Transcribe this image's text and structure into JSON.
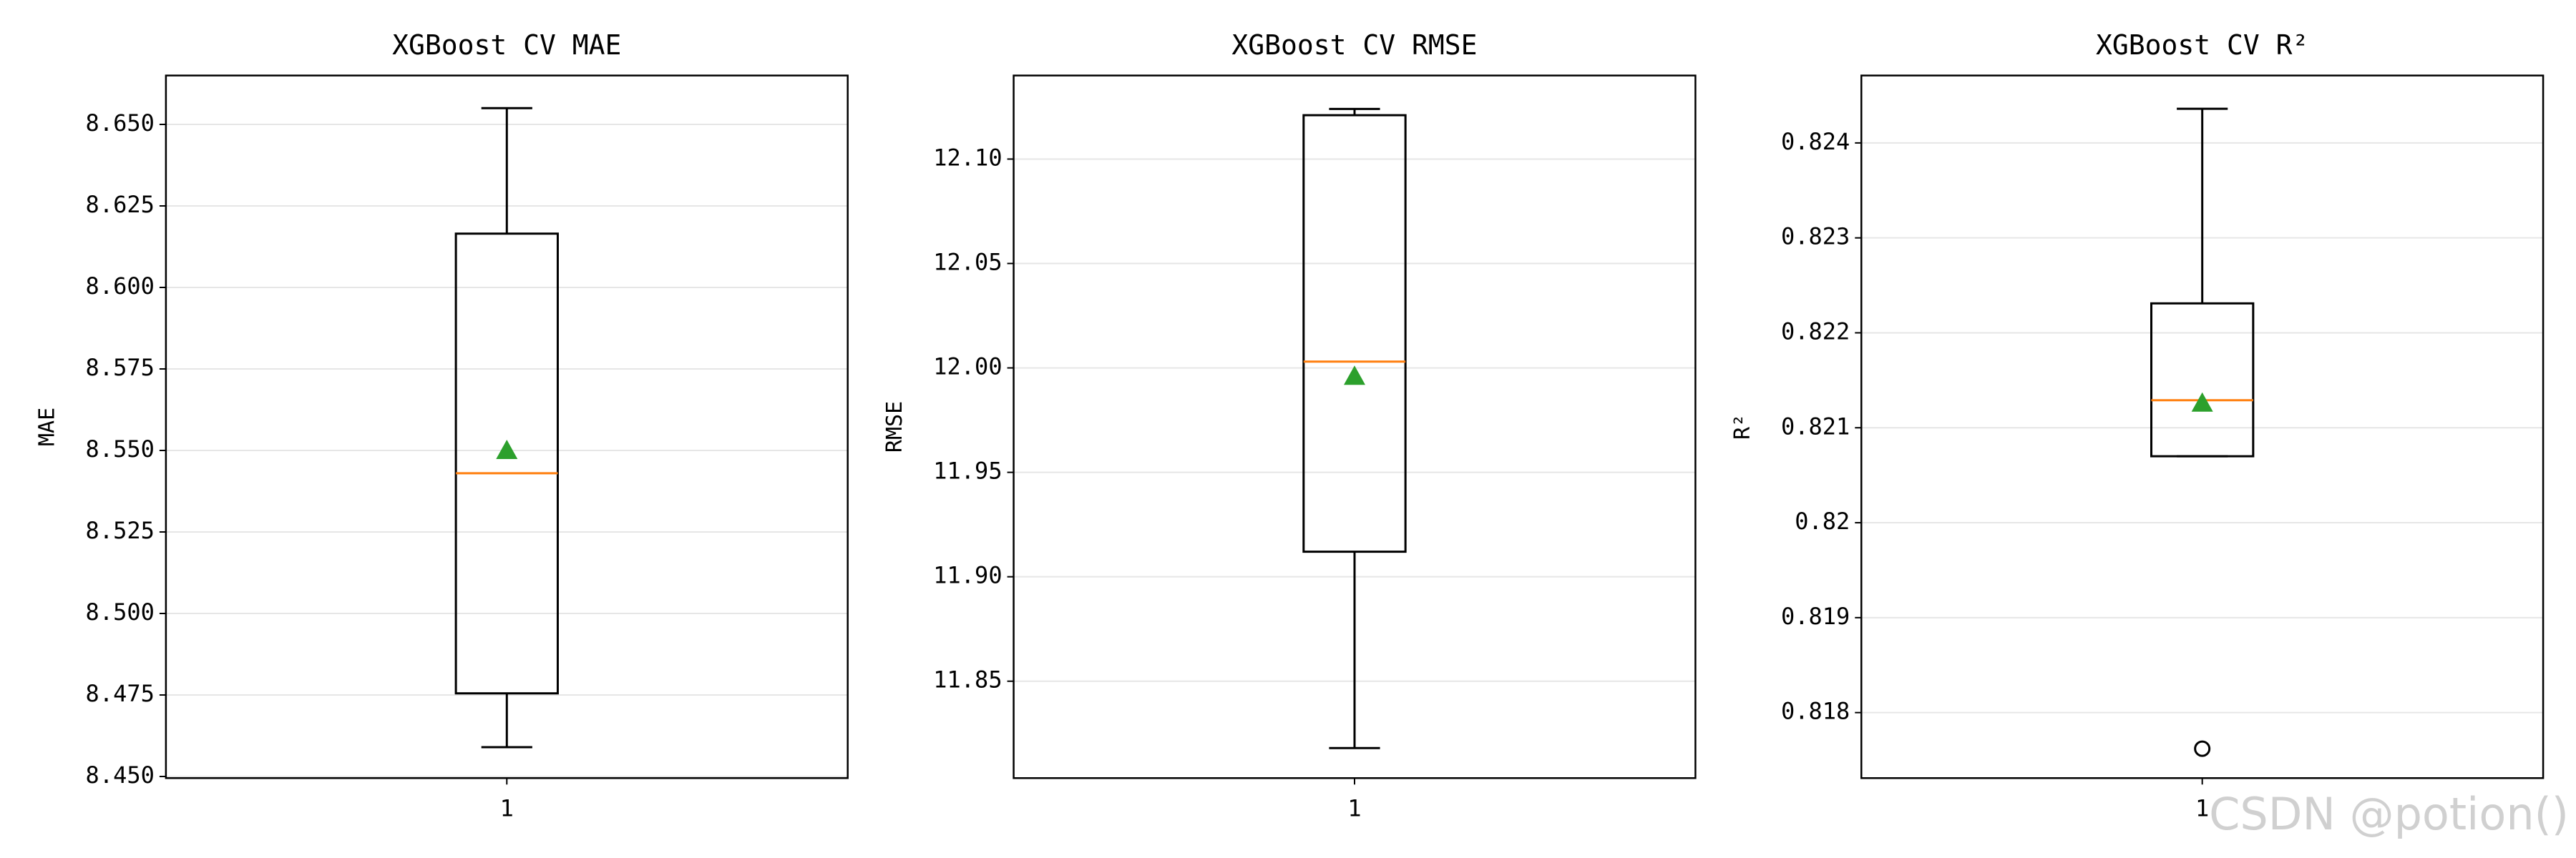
{
  "chart_data": [
    {
      "type": "box",
      "title": "XGBoost CV MAE",
      "ylabel": "MAE",
      "categories": [
        "1"
      ],
      "boxes": [
        {
          "whislo": 8.459,
          "q1": 8.4755,
          "med": 8.543,
          "q3": 8.6165,
          "whishi": 8.655,
          "mean": 8.55,
          "fliers": []
        }
      ],
      "ylim": [
        8.4495,
        8.665
      ],
      "yticks": [
        {
          "value": 8.45,
          "label": "8.450"
        },
        {
          "value": 8.475,
          "label": "8.475"
        },
        {
          "value": 8.5,
          "label": "8.500"
        },
        {
          "value": 8.525,
          "label": "8.525"
        },
        {
          "value": 8.55,
          "label": "8.550"
        },
        {
          "value": 8.575,
          "label": "8.575"
        },
        {
          "value": 8.6,
          "label": "8.600"
        },
        {
          "value": 8.625,
          "label": "8.625"
        },
        {
          "value": 8.65,
          "label": "8.650"
        }
      ],
      "grid": true,
      "box_color": "#000000",
      "median_color": "#ff7f0e",
      "mean_color": "#2ca02c"
    },
    {
      "type": "box",
      "title": "XGBoost CV RMSE",
      "ylabel": "RMSE",
      "categories": [
        "1"
      ],
      "boxes": [
        {
          "whislo": 11.818,
          "q1": 11.912,
          "med": 12.003,
          "q3": 12.121,
          "whishi": 12.124,
          "mean": 11.996,
          "fliers": []
        }
      ],
      "ylim": [
        11.8036,
        12.14
      ],
      "yticks": [
        11.85,
        {
          "value": 11.9,
          "label": "11.90"
        },
        11.95,
        {
          "value": 12.0,
          "label": "12.00"
        },
        12.05,
        {
          "value": 12.1,
          "label": "12.10"
        }
      ],
      "grid": true,
      "box_color": "#000000",
      "median_color": "#ff7f0e",
      "mean_color": "#2ca02c"
    },
    {
      "type": "box",
      "title": "XGBoost CV R²",
      "ylabel": "R²",
      "categories": [
        "1"
      ],
      "boxes": [
        {
          "whislo": 0.8207,
          "q1": 0.8207,
          "med": 0.82129,
          "q3": 0.82231,
          "whishi": 0.82436,
          "mean": 0.82126,
          "fliers": [
            0.81762
          ]
        }
      ],
      "ylim": [
        0.81731,
        0.82471
      ],
      "yticks": [
        0.818,
        0.819,
        0.82,
        0.821,
        0.822,
        0.823,
        0.824
      ],
      "grid": true,
      "box_color": "#000000",
      "median_color": "#ff7f0e",
      "mean_color": "#2ca02c"
    }
  ],
  "watermark": "CSDN @potion()"
}
